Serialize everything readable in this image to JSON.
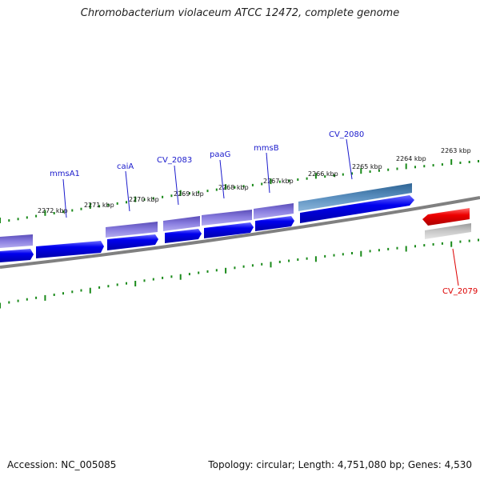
{
  "title": "Chromobacterium violaceum ATCC 12472, complete genome",
  "footer": {
    "accession": "Accession: NC_005085",
    "summary": "Topology: circular; Length: 4,751,080 bp; Genes: 4,530"
  },
  "colors": {
    "forward_cds": "#0000ee",
    "gene_lavender": "#7a6cd0",
    "gene_steel": "#4a7fb0",
    "reverse_cds": "#ee0000",
    "reverse_gene": "#bdbdbd",
    "backbone": "#808080",
    "ticks": "#1a8a1a",
    "label_blue": "#1a1acc",
    "label_red": "#dd0000"
  },
  "ticks": [
    "2272 kbp",
    "2271 kbp",
    "2270 kbp",
    "2269 kbp",
    "2268 kbp",
    "2267 kbp",
    "2266 kbp",
    "2265 kbp",
    "2264 kbp",
    "2263 kbp"
  ],
  "genes": [
    {
      "label": "mmsA1",
      "strand": "forward",
      "color": "label_blue"
    },
    {
      "label": "caiA",
      "strand": "forward",
      "color": "label_blue"
    },
    {
      "label": "CV_2083",
      "strand": "forward",
      "color": "label_blue"
    },
    {
      "label": "paaG",
      "strand": "forward",
      "color": "label_blue"
    },
    {
      "label": "mmsB",
      "strand": "forward",
      "color": "label_blue"
    },
    {
      "label": "CV_2080",
      "strand": "forward",
      "color": "label_blue"
    },
    {
      "label": "CV_2079",
      "strand": "reverse",
      "color": "label_red"
    }
  ]
}
